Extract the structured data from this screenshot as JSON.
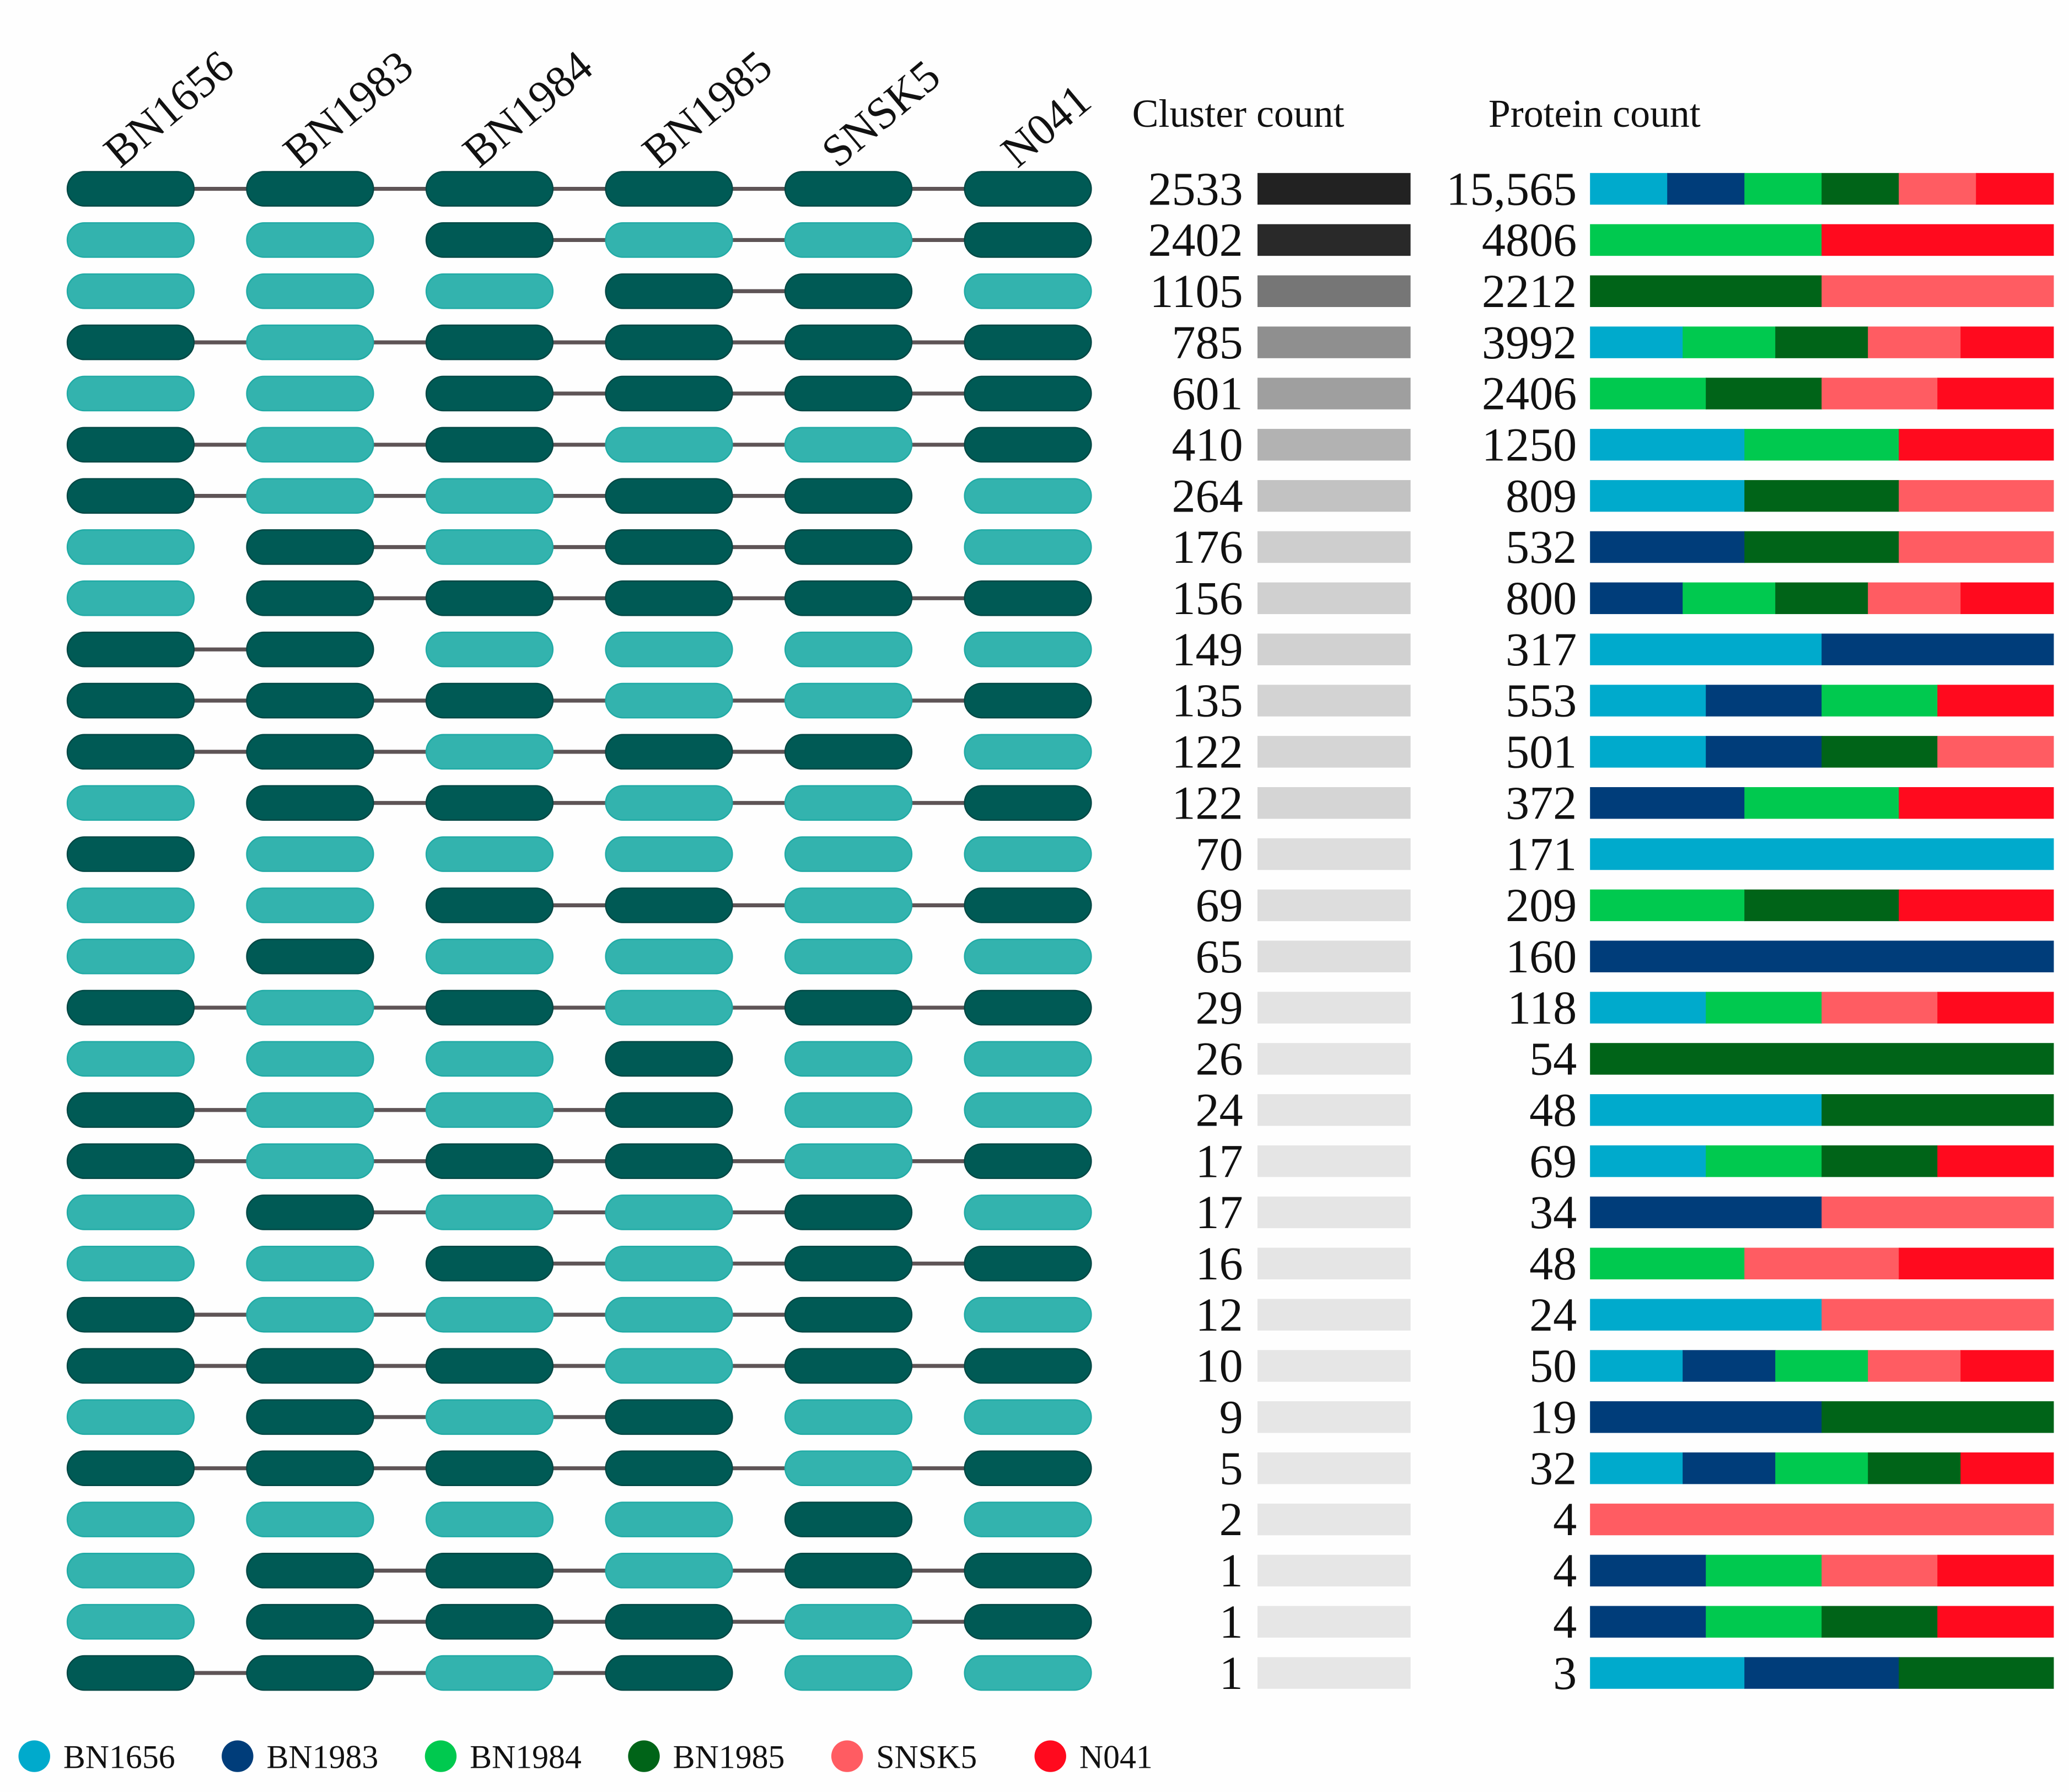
{
  "chart_data": {
    "type": "table",
    "strains": [
      "BN1656",
      "BN1983",
      "BN1984",
      "BN1985",
      "SNSK5",
      "N041"
    ],
    "strain_colors": {
      "BN1656": "#00aacc",
      "BN1983": "#003d7a",
      "BN1984": "#00c94f",
      "BN1985": "#006418",
      "SNSK5": "#ff5c62",
      "N041": "#ff0a1e"
    },
    "present_color": "#005a55",
    "absent_color": "#33b3ae",
    "headers": {
      "cluster_count": "Cluster count",
      "protein_count": "Protein count"
    },
    "rows": [
      {
        "present": [
          "BN1656",
          "BN1983",
          "BN1984",
          "BN1985",
          "SNSK5",
          "N041"
        ],
        "cluster_count": "2533",
        "protein_count": "15,565"
      },
      {
        "present": [
          "BN1984",
          "N041"
        ],
        "cluster_count": "2402",
        "protein_count": "4806"
      },
      {
        "present": [
          "BN1985",
          "SNSK5"
        ],
        "cluster_count": "1105",
        "protein_count": "2212"
      },
      {
        "present": [
          "BN1656",
          "BN1984",
          "BN1985",
          "SNSK5",
          "N041"
        ],
        "cluster_count": "785",
        "protein_count": "3992"
      },
      {
        "present": [
          "BN1984",
          "BN1985",
          "SNSK5",
          "N041"
        ],
        "cluster_count": "601",
        "protein_count": "2406"
      },
      {
        "present": [
          "BN1656",
          "BN1984",
          "N041"
        ],
        "cluster_count": "410",
        "protein_count": "1250"
      },
      {
        "present": [
          "BN1656",
          "BN1985",
          "SNSK5"
        ],
        "cluster_count": "264",
        "protein_count": "809"
      },
      {
        "present": [
          "BN1983",
          "BN1985",
          "SNSK5"
        ],
        "cluster_count": "176",
        "protein_count": "532"
      },
      {
        "present": [
          "BN1983",
          "BN1984",
          "BN1985",
          "SNSK5",
          "N041"
        ],
        "cluster_count": "156",
        "protein_count": "800"
      },
      {
        "present": [
          "BN1656",
          "BN1983"
        ],
        "cluster_count": "149",
        "protein_count": "317"
      },
      {
        "present": [
          "BN1656",
          "BN1983",
          "BN1984",
          "N041"
        ],
        "cluster_count": "135",
        "protein_count": "553"
      },
      {
        "present": [
          "BN1656",
          "BN1983",
          "BN1985",
          "SNSK5"
        ],
        "cluster_count": "122",
        "protein_count": "501"
      },
      {
        "present": [
          "BN1983",
          "BN1984",
          "N041"
        ],
        "cluster_count": "122",
        "protein_count": "372"
      },
      {
        "present": [
          "BN1656"
        ],
        "cluster_count": "70",
        "protein_count": "171"
      },
      {
        "present": [
          "BN1984",
          "BN1985",
          "N041"
        ],
        "cluster_count": "69",
        "protein_count": "209"
      },
      {
        "present": [
          "BN1983"
        ],
        "cluster_count": "65",
        "protein_count": "160"
      },
      {
        "present": [
          "BN1656",
          "BN1984",
          "SNSK5",
          "N041"
        ],
        "cluster_count": "29",
        "protein_count": "118"
      },
      {
        "present": [
          "BN1985"
        ],
        "cluster_count": "26",
        "protein_count": "54"
      },
      {
        "present": [
          "BN1656",
          "BN1985"
        ],
        "cluster_count": "24",
        "protein_count": "48"
      },
      {
        "present": [
          "BN1656",
          "BN1984",
          "BN1985",
          "N041"
        ],
        "cluster_count": "17",
        "protein_count": "69"
      },
      {
        "present": [
          "BN1983",
          "SNSK5"
        ],
        "cluster_count": "17",
        "protein_count": "34"
      },
      {
        "present": [
          "BN1984",
          "SNSK5",
          "N041"
        ],
        "cluster_count": "16",
        "protein_count": "48"
      },
      {
        "present": [
          "BN1656",
          "SNSK5"
        ],
        "cluster_count": "12",
        "protein_count": "24"
      },
      {
        "present": [
          "BN1656",
          "BN1983",
          "BN1984",
          "SNSK5",
          "N041"
        ],
        "cluster_count": "10",
        "protein_count": "50"
      },
      {
        "present": [
          "BN1983",
          "BN1985"
        ],
        "cluster_count": "9",
        "protein_count": "19"
      },
      {
        "present": [
          "BN1656",
          "BN1983",
          "BN1984",
          "BN1985",
          "N041"
        ],
        "cluster_count": "5",
        "protein_count": "32"
      },
      {
        "present": [
          "SNSK5"
        ],
        "cluster_count": "2",
        "protein_count": "4"
      },
      {
        "present": [
          "BN1983",
          "BN1984",
          "SNSK5",
          "N041"
        ],
        "cluster_count": "1",
        "protein_count": "4"
      },
      {
        "present": [
          "BN1983",
          "BN1984",
          "BN1985",
          "N041"
        ],
        "cluster_count": "1",
        "protein_count": "4"
      },
      {
        "present": [
          "BN1656",
          "BN1983",
          "BN1985"
        ],
        "cluster_count": "1",
        "protein_count": "3"
      }
    ],
    "legend": [
      "BN1656",
      "BN1983",
      "BN1984",
      "BN1985",
      "SNSK5",
      "N041"
    ],
    "legend_placement": "bottom-left"
  }
}
